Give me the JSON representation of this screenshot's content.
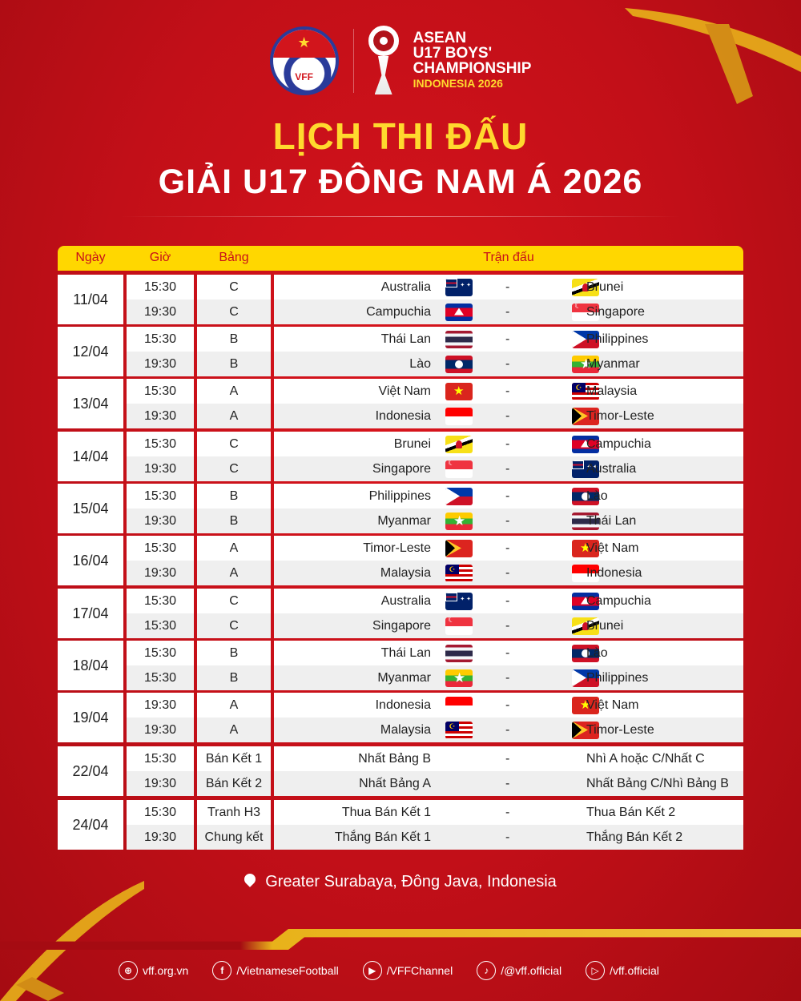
{
  "header": {
    "vff_logo_text": "VFF",
    "tournament_logo": {
      "line1": "ASEAN",
      "line2": "U17 BOYS'",
      "line3": "CHAMPIONSHIP",
      "line4": "INDONESIA 2026"
    },
    "title": "LỊCH THI ĐẤU",
    "subtitle": "GIẢI U17 ĐÔNG NAM Á 2026"
  },
  "colors": {
    "background": "#c8101a",
    "accent": "#ffd700",
    "title": "#ffd92e"
  },
  "table": {
    "columns": [
      "Ngày",
      "Giờ",
      "Bảng",
      "Trận đấu"
    ],
    "days": [
      {
        "date": "11/04",
        "matches": [
          {
            "time": "15:30",
            "group": "C",
            "home": "Australia",
            "home_flag": "au",
            "away": "Brunei",
            "away_flag": "bn"
          },
          {
            "time": "19:30",
            "group": "C",
            "home": "Campuchia",
            "home_flag": "kh",
            "away": "Singapore",
            "away_flag": "sg"
          }
        ]
      },
      {
        "date": "12/04",
        "matches": [
          {
            "time": "15:30",
            "group": "B",
            "home": "Thái Lan",
            "home_flag": "th",
            "away": "Philippines",
            "away_flag": "ph"
          },
          {
            "time": "19:30",
            "group": "B",
            "home": "Lào",
            "home_flag": "la",
            "away": "Myanmar",
            "away_flag": "mm"
          }
        ]
      },
      {
        "date": "13/04",
        "matches": [
          {
            "time": "15:30",
            "group": "A",
            "home": "Việt Nam",
            "home_flag": "vn",
            "away": "Malaysia",
            "away_flag": "my"
          },
          {
            "time": "19:30",
            "group": "A",
            "home": "Indonesia",
            "home_flag": "id",
            "away": "Timor-Leste",
            "away_flag": "tl"
          }
        ]
      },
      {
        "date": "14/04",
        "matches": [
          {
            "time": "15:30",
            "group": "C",
            "home": "Brunei",
            "home_flag": "bn",
            "away": "Campuchia",
            "away_flag": "kh"
          },
          {
            "time": "19:30",
            "group": "C",
            "home": "Singapore",
            "home_flag": "sg",
            "away": "Australia",
            "away_flag": "au"
          }
        ]
      },
      {
        "date": "15/04",
        "matches": [
          {
            "time": "15:30",
            "group": "B",
            "home": "Philippines",
            "home_flag": "ph",
            "away": "Lào",
            "away_flag": "la"
          },
          {
            "time": "19:30",
            "group": "B",
            "home": "Myanmar",
            "home_flag": "mm",
            "away": "Thái Lan",
            "away_flag": "th"
          }
        ]
      },
      {
        "date": "16/04",
        "matches": [
          {
            "time": "15:30",
            "group": "A",
            "home": "Timor-Leste",
            "home_flag": "tl",
            "away": "Việt Nam",
            "away_flag": "vn"
          },
          {
            "time": "19:30",
            "group": "A",
            "home": "Malaysia",
            "home_flag": "my",
            "away": "Indonesia",
            "away_flag": "id"
          }
        ]
      },
      {
        "date": "17/04",
        "matches": [
          {
            "time": "15:30",
            "group": "C",
            "home": "Australia",
            "home_flag": "au",
            "away": "Campuchia",
            "away_flag": "kh"
          },
          {
            "time": "15:30",
            "group": "C",
            "home": "Singapore",
            "home_flag": "sg",
            "away": "Brunei",
            "away_flag": "bn"
          }
        ]
      },
      {
        "date": "18/04",
        "matches": [
          {
            "time": "15:30",
            "group": "B",
            "home": "Thái Lan",
            "home_flag": "th",
            "away": "Lào",
            "away_flag": "la"
          },
          {
            "time": "15:30",
            "group": "B",
            "home": "Myanmar",
            "home_flag": "mm",
            "away": "Philippines",
            "away_flag": "ph"
          }
        ]
      },
      {
        "date": "19/04",
        "matches": [
          {
            "time": "19:30",
            "group": "A",
            "home": "Indonesia",
            "home_flag": "id",
            "away": "Việt Nam",
            "away_flag": "vn"
          },
          {
            "time": "19:30",
            "group": "A",
            "home": "Malaysia",
            "home_flag": "my",
            "away": "Timor-Leste",
            "away_flag": "tl"
          }
        ]
      },
      {
        "date": "22/04",
        "matches": [
          {
            "time": "15:30",
            "group": "Bán Kết 1",
            "home": "Nhất Bảng B",
            "away": "Nhì A hoặc C/Nhất C"
          },
          {
            "time": "19:30",
            "group": "Bán Kết 2",
            "home": "Nhất Bảng A",
            "away": "Nhất Bảng C/Nhì Bảng B"
          }
        ]
      },
      {
        "date": "24/04",
        "matches": [
          {
            "time": "15:30",
            "group": "Tranh H3",
            "home": "Thua Bán Kết 1",
            "away": "Thua Bán Kết 2"
          },
          {
            "time": "19:30",
            "group": "Chung kết",
            "home": "Thắng Bán Kết 1",
            "away": "Thắng Bán Kết 2"
          }
        ]
      }
    ],
    "separator": "-"
  },
  "location": {
    "icon": "map-pin-icon",
    "text": "Greater Surabaya, Đông Java, Indonesia"
  },
  "footer": {
    "socials": [
      {
        "icon": "globe-icon",
        "glyph": "⊕",
        "label": "vff.org.vn"
      },
      {
        "icon": "facebook-icon",
        "glyph": "f",
        "label": "/VietnameseFootball"
      },
      {
        "icon": "youtube-icon",
        "glyph": "▶",
        "label": "/VFFChannel"
      },
      {
        "icon": "tiktok-icon",
        "glyph": "♪",
        "label": "/@vff.official"
      },
      {
        "icon": "play-icon",
        "glyph": "▷",
        "label": "/vff.official"
      }
    ]
  }
}
